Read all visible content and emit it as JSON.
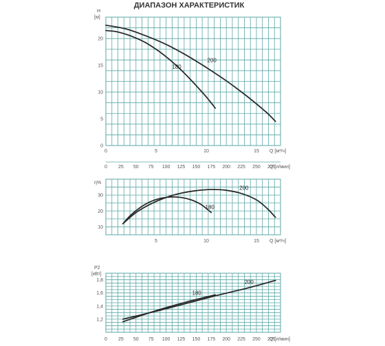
{
  "page": {
    "title": "ДИАПАЗОН ХАРАКТЕРИСТИК"
  },
  "style": {
    "grid_color": "#5aa6a6",
    "curve_color": "#2a2a2a",
    "text_color": "#555555"
  },
  "flow_axis": {
    "q_m3h_ticks": [
      "0",
      "5",
      "10",
      "15"
    ],
    "q_m3h_unit": "Q [м³/ч]",
    "q_lmin_ticks": [
      "0",
      "25",
      "50",
      "75",
      "100",
      "125",
      "150",
      "175",
      "200",
      "225",
      "250",
      "275"
    ],
    "q_lmin_unit": "Q [л/мин]"
  },
  "chart_data": [
    {
      "type": "line",
      "ylabel_top": "H",
      "ylabel_unit": "[м]",
      "xlim": [
        0,
        17.4
      ],
      "ylim": [
        0,
        24
      ],
      "y_ticks": [
        "0",
        "5",
        "10",
        "15",
        "20"
      ],
      "x_ticks": [
        "0",
        "5",
        "10",
        "15"
      ],
      "x_unit": "Q [м³/ч]",
      "x2_ticks": [
        "0",
        "25",
        "50",
        "75",
        "100",
        "125",
        "150",
        "175",
        "200",
        "225",
        "250",
        "275"
      ],
      "x2_unit": "Q [л/мин]",
      "series": [
        {
          "name": "180",
          "x": [
            0,
            1,
            2,
            3,
            4,
            5,
            6,
            7,
            8,
            9,
            10,
            10.9
          ],
          "y": [
            21.5,
            21.3,
            20.8,
            20.1,
            19.2,
            18.0,
            16.6,
            15.0,
            13.2,
            11.2,
            9.1,
            7.0
          ]
        },
        {
          "name": "200",
          "x": [
            0,
            2,
            4,
            6,
            8,
            10,
            12,
            14,
            16,
            16.9
          ],
          "y": [
            22.5,
            21.8,
            20.5,
            18.9,
            16.9,
            14.6,
            12.1,
            9.3,
            6.2,
            4.5
          ]
        }
      ]
    },
    {
      "type": "line",
      "ylabel_top": "η%",
      "xlim": [
        0,
        17.4
      ],
      "ylim": [
        5,
        40
      ],
      "y_ticks": [
        "10",
        "20",
        "30"
      ],
      "x_ticks": [
        "5",
        "10",
        "15"
      ],
      "x_unit": "Q [м³/ч]",
      "series": [
        {
          "name": "180",
          "x": [
            1.7,
            2.5,
            3.5,
            4.5,
            5.5,
            6.5,
            7.5,
            8.5,
            9.5,
            10.5
          ],
          "y": [
            12,
            17.5,
            22.5,
            26.0,
            28.0,
            28.8,
            28.5,
            27.0,
            24.0,
            19.0
          ]
        },
        {
          "name": "200",
          "x": [
            1.7,
            3,
            4.5,
            6,
            7.5,
            9,
            10.5,
            12,
            13.5,
            15,
            16,
            16.9
          ],
          "y": [
            12,
            19.0,
            24.5,
            28.5,
            31.2,
            32.8,
            33.5,
            33.0,
            31.0,
            27.0,
            22.0,
            16.0
          ]
        }
      ]
    },
    {
      "type": "line",
      "ylabel_top": "P2",
      "ylabel_unit": "[кВт]",
      "xlim": [
        0,
        17.4
      ],
      "ylim": [
        1.0,
        1.9
      ],
      "y_ticks": [
        "1,2",
        "1,4",
        "1,6",
        "1,8"
      ],
      "x_ticks": [
        "0",
        "25",
        "50",
        "75",
        "100",
        "125",
        "150",
        "175",
        "200",
        "225",
        "250",
        "275"
      ],
      "x_unit": "Q [л/мин]",
      "series": [
        {
          "name": "180",
          "x": [
            1.7,
            5,
            8,
            10.9
          ],
          "y": [
            1.16,
            1.33,
            1.46,
            1.57
          ]
        },
        {
          "name": "200",
          "x": [
            1.7,
            5,
            8,
            11,
            14,
            16.9
          ],
          "y": [
            1.2,
            1.32,
            1.44,
            1.56,
            1.67,
            1.79
          ]
        }
      ]
    }
  ]
}
